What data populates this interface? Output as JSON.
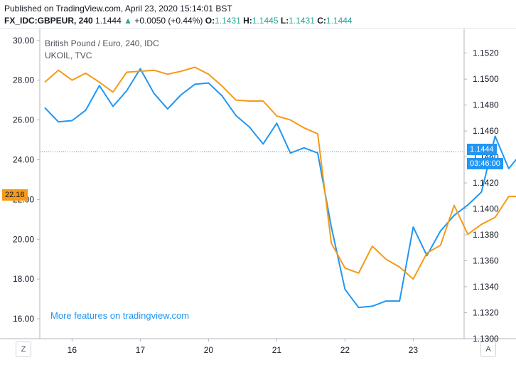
{
  "header": {
    "published": "Published on TradingView.com, April 23, 2020 15:14:01 BST",
    "symbol": "FX_IDC:GBPEUR, 240",
    "last": "1.1444",
    "change": "+0.0050 (+0.44%)",
    "o_label": "O:",
    "o": "1.1431",
    "h_label": "H:",
    "h": "1.1445",
    "l_label": "L:",
    "l": "1.1431",
    "c_label": "C:",
    "c": "1.1444"
  },
  "legend": {
    "title": "British Pound / Euro, 240, IDC",
    "subtitle": "UKOIL, TVC"
  },
  "promo": "More features on tradingview.com",
  "badges": {
    "left_value": "22.16",
    "right_value": "1.1444",
    "countdown": "03:46:00"
  },
  "buttons": {
    "left": "Z",
    "right": "A"
  },
  "colors": {
    "gbpeur": "#2196f3",
    "ukoil": "#f59a17",
    "up": "#26a69a"
  },
  "chart_data": {
    "type": "line",
    "x_tick_labels": [
      "16",
      "17",
      "20",
      "21",
      "22",
      "23"
    ],
    "x_tick_index": [
      2,
      7,
      12,
      17,
      22,
      27
    ],
    "left_axis": {
      "ticks": [
        16.0,
        18.0,
        20.0,
        22.0,
        24.0,
        26.0,
        28.0,
        30.0
      ],
      "range": [
        15.0,
        30.6
      ]
    },
    "right_axis": {
      "ticks": [
        1.13,
        1.132,
        1.134,
        1.136,
        1.138,
        1.14,
        1.142,
        1.144,
        1.146,
        1.148,
        1.15,
        1.152
      ],
      "range": [
        1.13,
        1.1539
      ]
    },
    "grid": false,
    "series": [
      {
        "name": "GBPEUR",
        "axis": "right",
        "values": [
          1.1478,
          1.1467,
          1.1468,
          1.1476,
          1.1495,
          1.1479,
          1.1491,
          1.1508,
          1.1489,
          1.1477,
          1.1488,
          1.1496,
          1.1497,
          1.1487,
          1.1472,
          1.1463,
          1.145,
          1.1466,
          1.1443,
          1.1447,
          1.1443,
          1.1386,
          1.1338,
          1.1324,
          1.1325,
          1.1329,
          1.1329,
          1.1386,
          1.1364,
          1.1383,
          1.1395,
          1.1403,
          1.1413,
          1.1456,
          1.1431,
          1.1444
        ]
      },
      {
        "name": "UKOIL",
        "axis": "left",
        "values": [
          27.9,
          28.5,
          28.0,
          28.35,
          27.9,
          27.4,
          28.4,
          28.45,
          28.5,
          28.3,
          28.45,
          28.65,
          28.3,
          27.7,
          27.0,
          26.95,
          26.95,
          26.2,
          26.0,
          25.6,
          25.3,
          19.8,
          18.55,
          18.3,
          19.65,
          19.0,
          18.6,
          18.0,
          19.3,
          19.7,
          21.7,
          20.25,
          20.75,
          21.1,
          22.15,
          22.16
        ]
      }
    ],
    "last_value_line": 1.1444
  }
}
